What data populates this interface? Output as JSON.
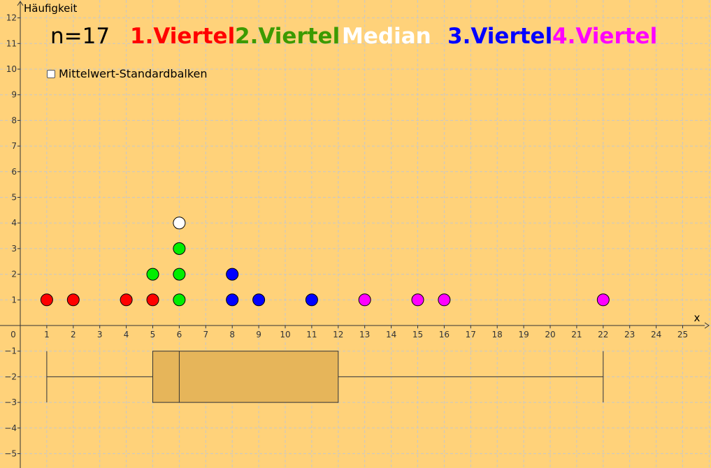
{
  "header": {
    "n_label": "n=17",
    "legend": [
      {
        "label": "1.Viertel",
        "color": "#ff0000"
      },
      {
        "label": "2.Viertel",
        "color": "#3c9a00"
      },
      {
        "label": "Median",
        "color": "#ffffff"
      },
      {
        "label": "3.Viertel",
        "color": "#0000ff"
      },
      {
        "label": "4.Viertel",
        "color": "#ff00ff"
      }
    ]
  },
  "checkbox": {
    "label": "Mittelwert-Standardbalken",
    "checked": false
  },
  "chart_data": {
    "type": "scatter",
    "ylabel": "Häufigkeit",
    "xlabel": "x",
    "xlim": [
      0,
      25
    ],
    "ylim": [
      -5,
      12
    ],
    "x_ticks": [
      0,
      1,
      2,
      3,
      4,
      5,
      6,
      7,
      8,
      9,
      10,
      11,
      12,
      13,
      14,
      15,
      16,
      17,
      18,
      19,
      20,
      21,
      22,
      23,
      24,
      25
    ],
    "y_ticks": [
      -5,
      -4,
      -3,
      -2,
      -1,
      1,
      2,
      3,
      4,
      5,
      6,
      7,
      8,
      9,
      10,
      11,
      12
    ],
    "grid": true,
    "series": [
      {
        "name": "1.Viertel",
        "color": "#ff0000",
        "points": [
          [
            1,
            1
          ],
          [
            2,
            1
          ],
          [
            4,
            1
          ],
          [
            5,
            1
          ]
        ]
      },
      {
        "name": "2.Viertel",
        "color": "#00ee00",
        "points": [
          [
            5,
            2
          ],
          [
            6,
            1
          ],
          [
            6,
            2
          ],
          [
            6,
            3
          ]
        ]
      },
      {
        "name": "Median",
        "color": "#ffffff",
        "points": [
          [
            6,
            4
          ]
        ]
      },
      {
        "name": "3.Viertel",
        "color": "#0000ff",
        "points": [
          [
            8,
            1
          ],
          [
            8,
            2
          ],
          [
            9,
            1
          ],
          [
            11,
            1
          ]
        ]
      },
      {
        "name": "4.Viertel",
        "color": "#ff00ff",
        "points": [
          [
            13,
            1
          ],
          [
            15,
            1
          ],
          [
            16,
            1
          ],
          [
            22,
            1
          ]
        ]
      }
    ],
    "boxplot": {
      "min": 1,
      "q1": 5,
      "median": 6,
      "q3": 12,
      "max": 22,
      "y_center": -2,
      "half_height": 1,
      "fill": "#e6b55a"
    }
  }
}
